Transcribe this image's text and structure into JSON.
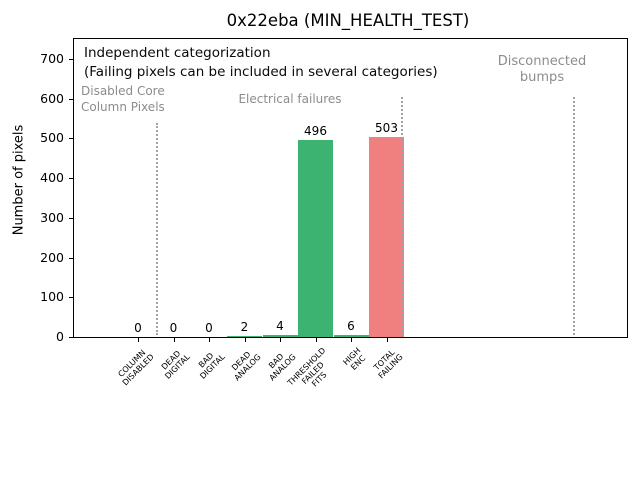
{
  "chart_data": {
    "type": "bar",
    "title": "0x22eba (MIN_HEALTH_TEST)",
    "ylabel": "Number of pixels",
    "xlabel": "",
    "categories": [
      "COLUMN\nDISABLED",
      "DEAD\nDIGITAL",
      "BAD\nDIGITAL",
      "DEAD\nANALOG",
      "BAD\nANALOG",
      "THRESHOLD\nFAILED\nFITS",
      "HIGH\nENC",
      "TOTAL\nFAILING"
    ],
    "values": [
      0,
      0,
      0,
      2,
      4,
      496,
      6,
      503
    ],
    "value_labels": [
      "0",
      "0",
      "0",
      "2",
      "4",
      "496",
      "6",
      "503"
    ],
    "bar_colors": [
      "#3cb371",
      "#3cb371",
      "#3cb371",
      "#3cb371",
      "#3cb371",
      "#3cb371",
      "#3cb371",
      "#f08080"
    ],
    "ylim": [
      0,
      700
    ],
    "yticks": [
      0,
      100,
      200,
      300,
      400,
      500,
      600,
      700
    ],
    "grid": false,
    "legend": "none",
    "annotations": {
      "note_line1": "Independent categorization",
      "note_line2": "(Failing pixels can be included in several categories)",
      "section_disabled_core": "Disabled Core\nColumn Pixels",
      "section_electrical": "Electrical failures",
      "section_disconnected": "Disconnected\nbumps"
    }
  },
  "colors": {
    "bar_ok_green": "#3cb371",
    "bar_total_red": "#f08080",
    "section_label_gray": "#8c8c8c",
    "separator_dotted_gray": "#a3a3a3"
  }
}
